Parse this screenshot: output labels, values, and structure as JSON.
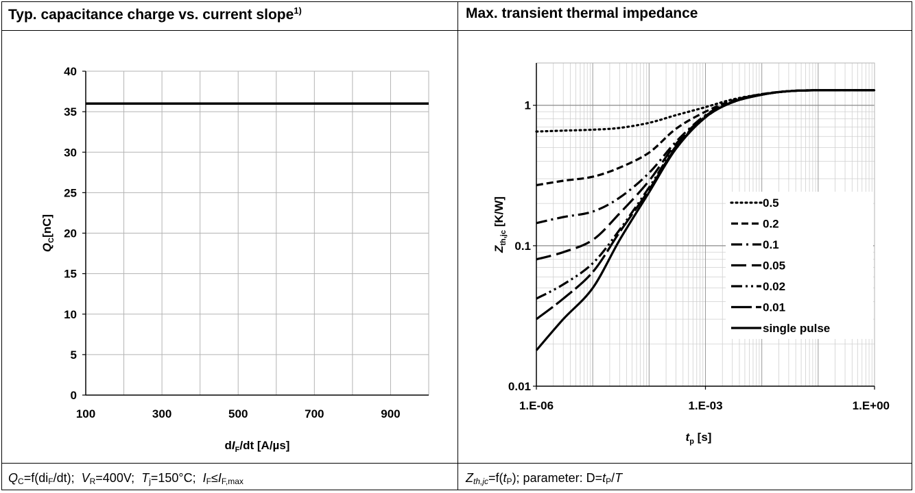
{
  "header": {
    "left_title": "Typ. capacitance charge vs. current slope",
    "left_title_note": "1)",
    "right_title": "Max. transient thermal impedance"
  },
  "captions": {
    "left": {
      "qc": "Q",
      "qc_sub": "C",
      "eq1": "=f(di",
      "eq1_sub": "F",
      "eq1_end": "/dt);",
      "vr": "V",
      "vr_sub": "R",
      "vr_val": "=400V;",
      "tj": "T",
      "tj_sub": "j",
      "tj_val": "=150°C;",
      "if": "I",
      "if_sub": "F",
      "le": "≤",
      "if2": "I",
      "if2_sub": "F,max"
    },
    "right": {
      "z": "Z",
      "z_sub": "th,jc",
      "eq": "=f(",
      "tp": "t",
      "tp_sub": "P",
      "param": "); parameter: D=",
      "tp2": "t",
      "tp2_sub": "P",
      "slash": "/",
      "T": "T"
    }
  },
  "chart_data": [
    {
      "type": "line",
      "title": "Typ. capacitance charge vs. current slope",
      "xlabel": "dIF/dt [A/µs]",
      "ylabel": "QC[nC]",
      "xlabel_parts": {
        "pre": "d",
        "ital": "I",
        "sub": "F",
        "post": "/dt [A/µs]"
      },
      "ylabel_parts": {
        "ital": "Q",
        "sub": "C",
        "post": "[nC]"
      },
      "xlim": [
        100,
        1000
      ],
      "ylim": [
        0,
        40
      ],
      "xticks": [
        100,
        300,
        500,
        700,
        900
      ],
      "yticks": [
        0,
        5,
        10,
        15,
        20,
        25,
        30,
        35,
        40
      ],
      "grid": true,
      "series": [
        {
          "x": [
            100,
            1000
          ],
          "y": [
            36,
            36
          ]
        }
      ]
    },
    {
      "type": "line",
      "title": "Max. transient thermal impedance",
      "xlabel": "tp [s]",
      "ylabel": "Zth,jc [K/W]",
      "xlabel_parts": {
        "ital": "t",
        "sub": "p",
        "post": " [s]"
      },
      "ylabel_parts": {
        "ital": "Z",
        "sub": "th,jc",
        "post": " [K/W]"
      },
      "xscale": "log",
      "yscale": "log",
      "xlim": [
        1e-06,
        1
      ],
      "ylim": [
        0.01,
        2
      ],
      "xticks": [
        "1.E-06",
        "1.E-03",
        "1.E+00"
      ],
      "yticks": [
        "0.01",
        "0.1",
        "1"
      ],
      "grid": true,
      "legend_position": "right",
      "series": [
        {
          "name": "0.5",
          "dash": "dotted",
          "x": [
            1e-06,
            3e-06,
            1e-05,
            3e-05,
            0.0001,
            0.0003,
            0.001,
            0.003,
            0.01,
            0.03,
            0.1,
            1
          ],
          "y": [
            0.65,
            0.66,
            0.67,
            0.69,
            0.75,
            0.85,
            0.97,
            1.1,
            1.2,
            1.26,
            1.28,
            1.28
          ]
        },
        {
          "name": "0.2",
          "dash": "dashed",
          "x": [
            1e-06,
            3e-06,
            1e-05,
            3e-05,
            0.0001,
            0.0003,
            0.001,
            0.003,
            0.01,
            0.03,
            0.1,
            1
          ],
          "y": [
            0.27,
            0.29,
            0.31,
            0.36,
            0.46,
            0.68,
            0.9,
            1.08,
            1.2,
            1.26,
            1.28,
            1.28
          ]
        },
        {
          "name": "0.1",
          "dash": "dashdot",
          "x": [
            1e-06,
            3e-06,
            1e-05,
            3e-05,
            0.0001,
            0.0003,
            0.001,
            0.003,
            0.01,
            0.03,
            0.1,
            1
          ],
          "y": [
            0.145,
            0.16,
            0.175,
            0.22,
            0.33,
            0.55,
            0.85,
            1.06,
            1.19,
            1.26,
            1.28,
            1.28
          ]
        },
        {
          "name": "0.05",
          "dash": "longdash",
          "x": [
            1e-06,
            3e-06,
            1e-05,
            3e-05,
            0.0001,
            0.0003,
            0.001,
            0.003,
            0.01,
            0.03,
            0.1,
            1
          ],
          "y": [
            0.08,
            0.09,
            0.11,
            0.17,
            0.29,
            0.53,
            0.84,
            1.05,
            1.19,
            1.26,
            1.28,
            1.28
          ]
        },
        {
          "name": "0.02",
          "dash": "dashdotdot",
          "x": [
            1e-06,
            3e-06,
            1e-05,
            3e-05,
            0.0001,
            0.0003,
            0.001,
            0.003,
            0.01,
            0.03,
            0.1,
            1
          ],
          "y": [
            0.042,
            0.053,
            0.075,
            0.13,
            0.26,
            0.51,
            0.83,
            1.05,
            1.19,
            1.26,
            1.28,
            1.28
          ]
        },
        {
          "name": "0.01",
          "dash": "longdash2",
          "x": [
            1e-06,
            3e-06,
            1e-05,
            3e-05,
            0.0001,
            0.0003,
            0.001,
            0.003,
            0.01,
            0.03,
            0.1,
            1
          ],
          "y": [
            0.03,
            0.042,
            0.065,
            0.125,
            0.25,
            0.5,
            0.82,
            1.05,
            1.19,
            1.26,
            1.28,
            1.28
          ]
        },
        {
          "name": "single pulse",
          "dash": "solid",
          "x": [
            1e-06,
            3e-06,
            1e-05,
            3e-05,
            0.0001,
            0.0003,
            0.001,
            0.003,
            0.01,
            0.03,
            0.1,
            1
          ],
          "y": [
            0.018,
            0.03,
            0.05,
            0.11,
            0.24,
            0.49,
            0.82,
            1.05,
            1.19,
            1.26,
            1.28,
            1.28
          ]
        }
      ]
    }
  ]
}
